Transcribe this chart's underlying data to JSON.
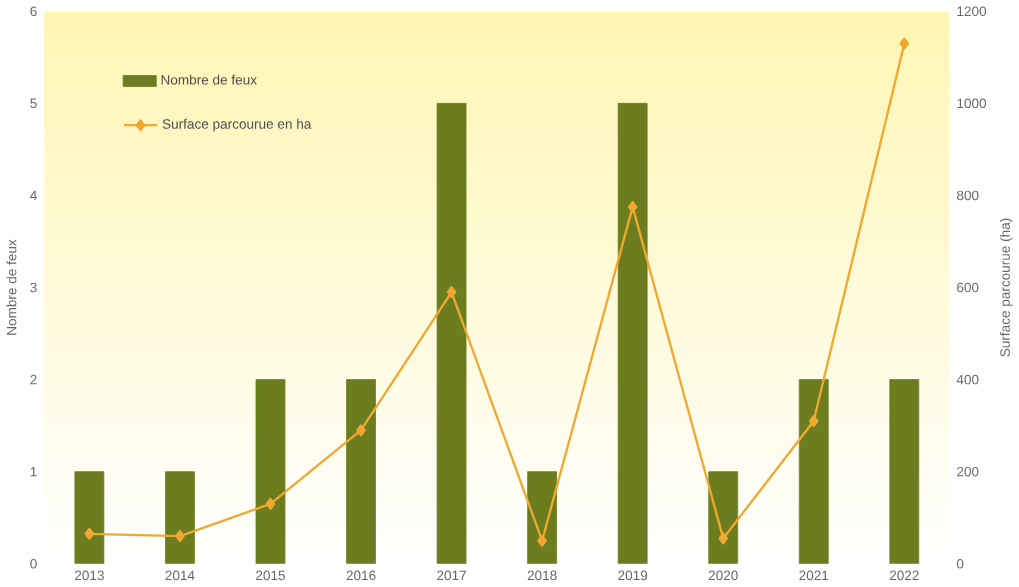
{
  "chart_data": {
    "type": "bar",
    "ylabel": "Nombre de feux",
    "y2label": "Surface parcourue (ha)",
    "categories": [
      "2013",
      "2014",
      "2015",
      "2016",
      "2017",
      "2018",
      "2019",
      "2020",
      "2021",
      "2022"
    ],
    "series": [
      {
        "name": "Nombre de feux",
        "color": "#6b7d1e",
        "values": [
          1,
          1,
          2,
          2,
          5,
          1,
          5,
          1,
          2,
          2
        ]
      },
      {
        "name": "Surface parcourue en ha",
        "type": "line",
        "axis": "y2",
        "color": "#f0a830",
        "marker": "diamond",
        "values": [
          65,
          60,
          130,
          290,
          590,
          50,
          775,
          55,
          310,
          1130
        ]
      }
    ],
    "ylim": [
      0,
      6
    ],
    "yticks": [
      0,
      1,
      2,
      3,
      4,
      5,
      6
    ],
    "y2lim": [
      0,
      1200
    ],
    "y2ticks": [
      0,
      200,
      400,
      600,
      800,
      1000,
      1200
    ],
    "legend": "top left",
    "grid": false
  }
}
